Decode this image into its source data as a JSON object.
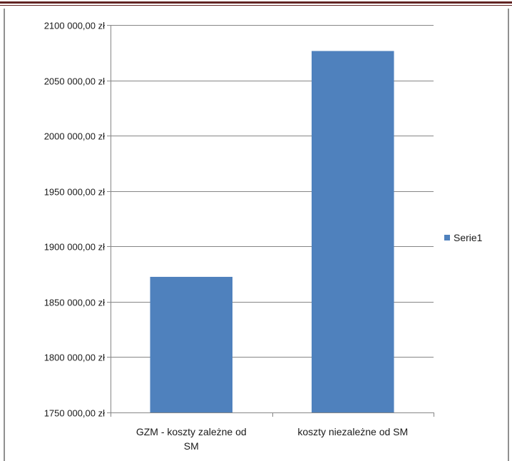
{
  "colors": {
    "bar": "#4F81BD",
    "grid": "#868686",
    "axis": "#868686",
    "text": "#1a1a1a",
    "page_border": "#622423"
  },
  "chart_data": {
    "type": "bar",
    "categories": [
      "GZM - koszty zależne od SM",
      "koszty niezależne od SM"
    ],
    "category_label_lines": [
      [
        "GZM - koszty zależne od",
        "SM"
      ],
      [
        "koszty niezależne od SM"
      ]
    ],
    "series": [
      {
        "name": "Serie1",
        "values": [
          1872500,
          2076500
        ]
      }
    ],
    "ylim": [
      1750000,
      2100000
    ],
    "y_ticks": [
      1750000,
      1800000,
      1850000,
      1900000,
      1950000,
      2000000,
      2050000,
      2100000
    ],
    "y_tick_labels": [
      "1750 000,00 zł",
      "1800 000,00 zł",
      "1850 000,00 zł",
      "1900 000,00 zł",
      "1950 000,00 zł",
      "2000 000,00 zł",
      "2050 000,00 zł",
      "2100 000,00 zł"
    ],
    "grid": true,
    "legend_position": "right"
  }
}
